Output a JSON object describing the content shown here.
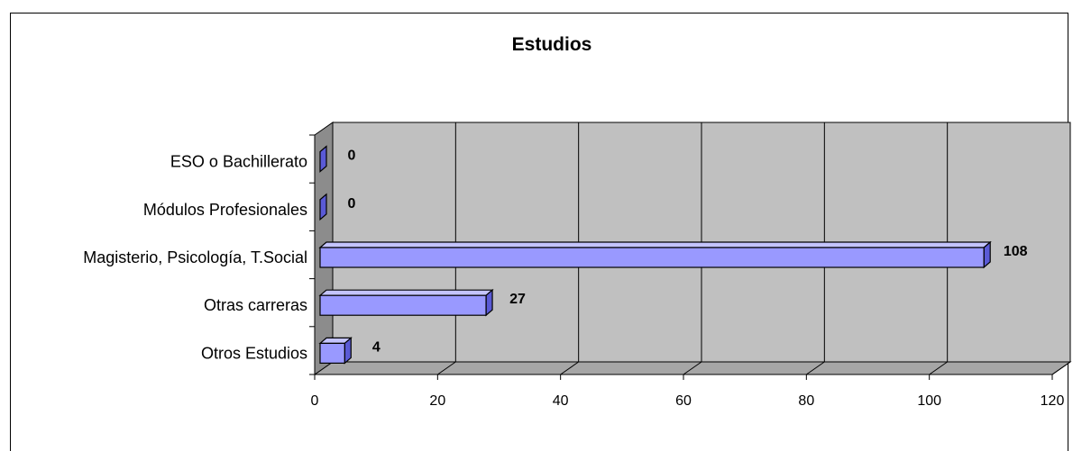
{
  "chart_data": {
    "type": "bar",
    "orientation": "horizontal",
    "title": "Estudios",
    "categories": [
      "ESO o Bachillerato",
      "Módulos Profesionales",
      "Magisterio, Psicología, T.Social",
      "Otras carreras",
      "Otros Estudios"
    ],
    "values": [
      0,
      0,
      108,
      27,
      4
    ],
    "data_labels": [
      "0",
      "0",
      "108",
      "27",
      "4"
    ],
    "xlim": [
      0,
      120
    ],
    "x_ticks": [
      0,
      20,
      40,
      60,
      80,
      100,
      120
    ],
    "x_tick_labels": [
      "0",
      "20",
      "40",
      "60",
      "80",
      "100",
      "120"
    ],
    "grid": true,
    "legend": "none",
    "colors": {
      "bar_front": "#9999ff",
      "bar_top": "#c4c4ff",
      "bar_side": "#5a5ad6",
      "plot_back": "#c0c0c0",
      "plot_floor": "#a6a6a6",
      "wall": "#8c8c8c"
    }
  }
}
